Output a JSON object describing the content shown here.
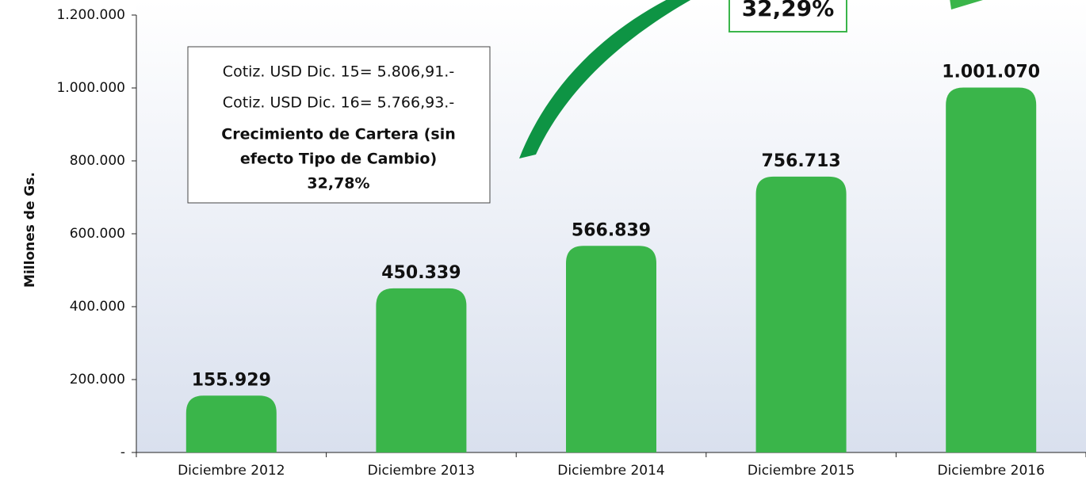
{
  "chart_data": {
    "type": "bar",
    "y_label": "Millones de Gs.",
    "categories": [
      "Diciembre 2012",
      "Diciembre 2013",
      "Diciembre 2014",
      "Diciembre 2015",
      "Diciembre 2016"
    ],
    "values": [
      155929,
      450339,
      566839,
      756713,
      1001070
    ],
    "value_labels": [
      "155.929",
      "450.339",
      "566.839",
      "756.713",
      "1.001.070"
    ],
    "color": "#3ab54a",
    "ylim": [
      0,
      1200000
    ],
    "yticks": [
      {
        "value": 0,
        "label": "-"
      },
      {
        "value": 200000,
        "label": "200.000"
      },
      {
        "value": 400000,
        "label": "400.000"
      },
      {
        "value": 600000,
        "label": "600.000"
      },
      {
        "value": 800000,
        "label": "800.000"
      },
      {
        "value": 1000000,
        "label": "1.000.000"
      },
      {
        "value": 1200000,
        "label": "1.200.000"
      }
    ],
    "annotations": {
      "box_lines": [
        "Cotiz. USD Dic. 15= 5.806,91.-",
        "Cotiz. USD Dic. 16= 5.766,93.-"
      ],
      "box_bold_lines": [
        "Crecimiento de Cartera (sin",
        "efecto Tipo de Cambio)",
        "32,78%"
      ],
      "growth": "32,29%"
    }
  }
}
